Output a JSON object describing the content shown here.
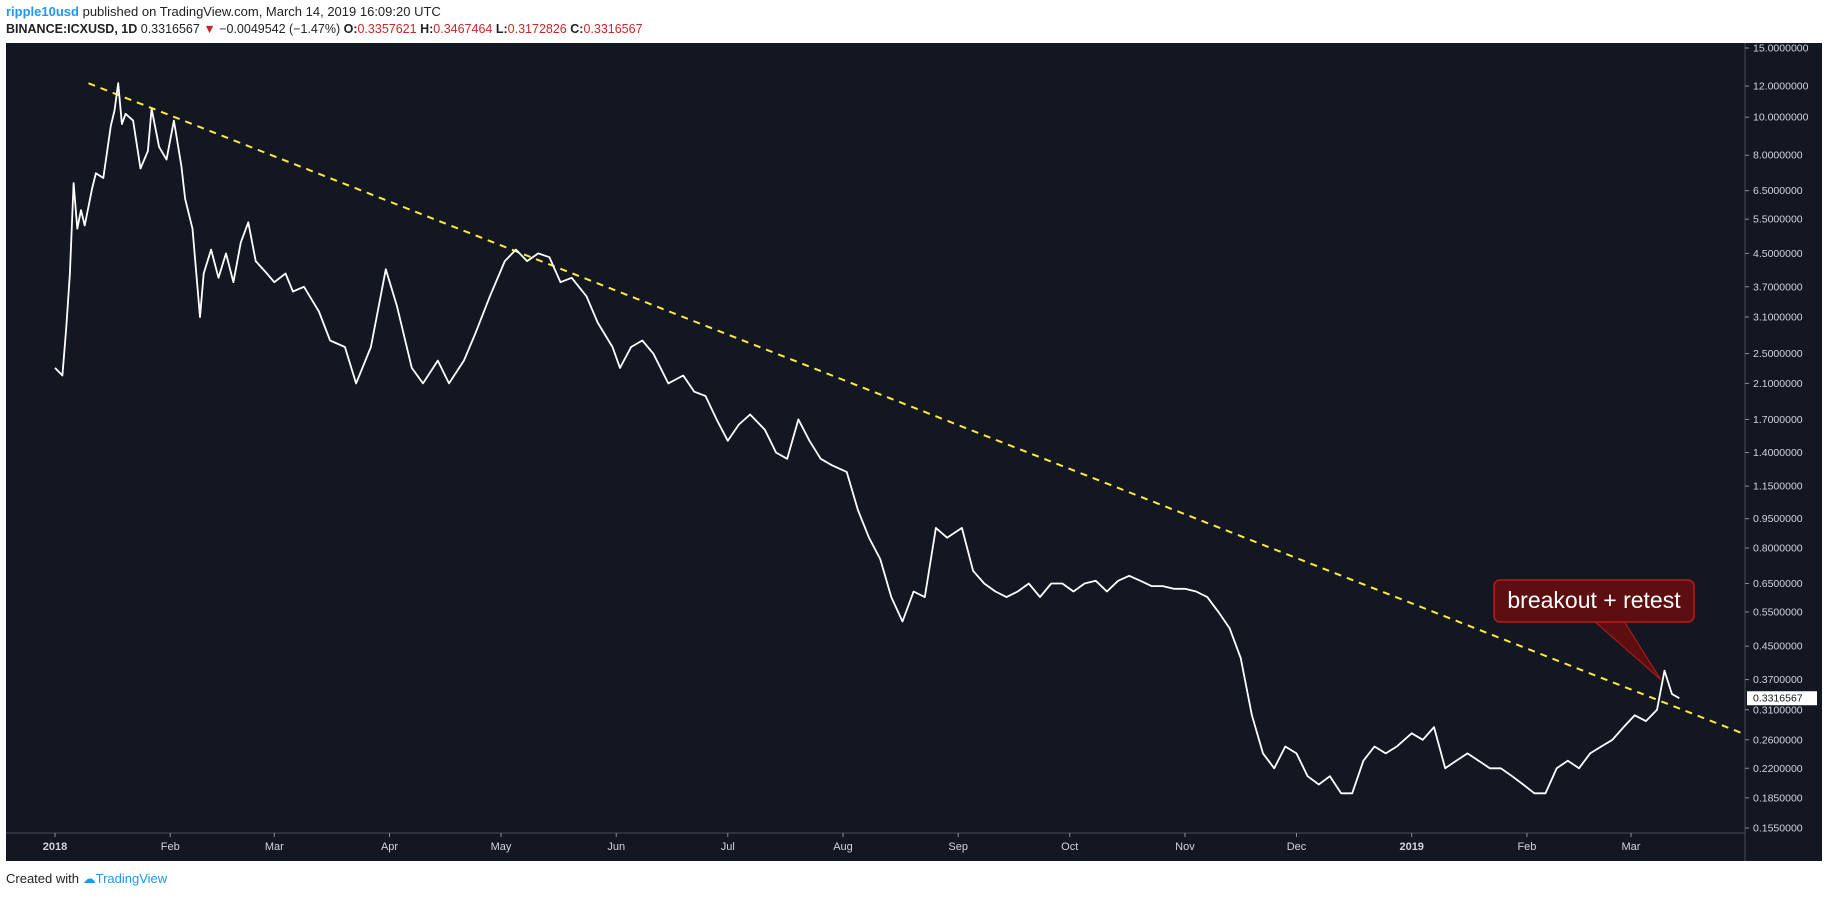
{
  "header": {
    "author": "ripple10usd",
    "published": "published on TradingView.com, March 14, 2019 16:09:20 UTC"
  },
  "symbol_line": {
    "symbol": "BINANCE:ICXUSD, 1D",
    "price": "0.3316567",
    "change_arrow": "▼",
    "change": "−0.0049542 (−1.47%)",
    "o_label": "O:",
    "o_value": "0.3357621",
    "h_label": "H:",
    "h_value": "0.3467464",
    "l_label": "L:",
    "l_value": "0.3172826",
    "c_label": "C:",
    "c_value": "0.3316567"
  },
  "footer": {
    "created_with": "Created with",
    "brand": "TradingView"
  },
  "colors": {
    "background": "#131722",
    "line": "#ffffff",
    "trendline": "#ffeb3b",
    "callout_fill": "#5d0f10",
    "callout_border": "#b71c1c",
    "down": "#c62828",
    "brand": "#2196f3"
  },
  "chart_data": {
    "type": "line",
    "scale": "log",
    "y_ticks": [
      "15.0000000",
      "12.0000000",
      "10.0000000",
      "8.0000000",
      "6.5000000",
      "5.5000000",
      "4.5000000",
      "3.7000000",
      "3.1000000",
      "2.5000000",
      "2.1000000",
      "1.7000000",
      "1.4000000",
      "1.1500000",
      "0.9500000",
      "0.8000000",
      "0.6500000",
      "0.5500000",
      "0.4500000",
      "0.3700000",
      "0.3100000",
      "0.2600000",
      "0.2200000",
      "0.1850000",
      "0.1550000"
    ],
    "x_ticks": [
      "2018",
      "Feb",
      "Mar",
      "Apr",
      "May",
      "Jun",
      "Jul",
      "Aug",
      "Sep",
      "Oct",
      "Nov",
      "Dec",
      "2019",
      "Feb",
      "Mar"
    ],
    "last_price_label": "0.3316567",
    "annotation": "breakout + retest",
    "trendline": {
      "from": {
        "x": "2018-01-10",
        "y": 12.2
      },
      "to": {
        "x": "2019-03-31",
        "y": 0.27
      }
    },
    "series": [
      {
        "points": [
          [
            "2018-01-01",
            2.3
          ],
          [
            "2018-01-03",
            2.2
          ],
          [
            "2018-01-04",
            2.9
          ],
          [
            "2018-01-05",
            4.0
          ],
          [
            "2018-01-06",
            6.8
          ],
          [
            "2018-01-07",
            5.2
          ],
          [
            "2018-01-08",
            5.8
          ],
          [
            "2018-01-09",
            5.3
          ],
          [
            "2018-01-11",
            6.6
          ],
          [
            "2018-01-12",
            7.2
          ],
          [
            "2018-01-14",
            7.0
          ],
          [
            "2018-01-16",
            9.5
          ],
          [
            "2018-01-17",
            10.4
          ],
          [
            "2018-01-18",
            12.2
          ],
          [
            "2018-01-19",
            9.6
          ],
          [
            "2018-01-20",
            10.2
          ],
          [
            "2018-01-22",
            9.8
          ],
          [
            "2018-01-24",
            7.4
          ],
          [
            "2018-01-26",
            8.2
          ],
          [
            "2018-01-27",
            10.5
          ],
          [
            "2018-01-29",
            8.4
          ],
          [
            "2018-01-31",
            7.8
          ],
          [
            "2018-02-02",
            9.8
          ],
          [
            "2018-02-04",
            7.5
          ],
          [
            "2018-02-05",
            6.2
          ],
          [
            "2018-02-07",
            5.2
          ],
          [
            "2018-02-09",
            3.1
          ],
          [
            "2018-02-10",
            4.0
          ],
          [
            "2018-02-12",
            4.6
          ],
          [
            "2018-02-14",
            3.9
          ],
          [
            "2018-02-16",
            4.5
          ],
          [
            "2018-02-18",
            3.8
          ],
          [
            "2018-02-20",
            4.8
          ],
          [
            "2018-02-22",
            5.4
          ],
          [
            "2018-02-24",
            4.3
          ],
          [
            "2018-02-27",
            4.0
          ],
          [
            "2018-03-01",
            3.8
          ],
          [
            "2018-03-04",
            4.0
          ],
          [
            "2018-03-06",
            3.6
          ],
          [
            "2018-03-09",
            3.7
          ],
          [
            "2018-03-13",
            3.2
          ],
          [
            "2018-03-16",
            2.7
          ],
          [
            "2018-03-20",
            2.6
          ],
          [
            "2018-03-23",
            2.1
          ],
          [
            "2018-03-27",
            2.6
          ],
          [
            "2018-03-31",
            4.1
          ],
          [
            "2018-04-03",
            3.3
          ],
          [
            "2018-04-07",
            2.3
          ],
          [
            "2018-04-10",
            2.1
          ],
          [
            "2018-04-14",
            2.4
          ],
          [
            "2018-04-17",
            2.1
          ],
          [
            "2018-04-21",
            2.4
          ],
          [
            "2018-04-24",
            2.8
          ],
          [
            "2018-04-28",
            3.5
          ],
          [
            "2018-05-02",
            4.3
          ],
          [
            "2018-05-05",
            4.6
          ],
          [
            "2018-05-08",
            4.3
          ],
          [
            "2018-05-11",
            4.5
          ],
          [
            "2018-05-14",
            4.4
          ],
          [
            "2018-05-17",
            3.8
          ],
          [
            "2018-05-20",
            3.9
          ],
          [
            "2018-05-24",
            3.5
          ],
          [
            "2018-05-27",
            3.0
          ],
          [
            "2018-05-31",
            2.6
          ],
          [
            "2018-06-02",
            2.3
          ],
          [
            "2018-06-05",
            2.6
          ],
          [
            "2018-06-08",
            2.7
          ],
          [
            "2018-06-11",
            2.5
          ],
          [
            "2018-06-15",
            2.1
          ],
          [
            "2018-06-19",
            2.2
          ],
          [
            "2018-06-22",
            2.0
          ],
          [
            "2018-06-25",
            1.95
          ],
          [
            "2018-06-28",
            1.7
          ],
          [
            "2018-07-01",
            1.5
          ],
          [
            "2018-07-04",
            1.65
          ],
          [
            "2018-07-07",
            1.75
          ],
          [
            "2018-07-11",
            1.6
          ],
          [
            "2018-07-14",
            1.4
          ],
          [
            "2018-07-17",
            1.35
          ],
          [
            "2018-07-20",
            1.7
          ],
          [
            "2018-07-23",
            1.5
          ],
          [
            "2018-07-26",
            1.35
          ],
          [
            "2018-07-29",
            1.3
          ],
          [
            "2018-08-02",
            1.25
          ],
          [
            "2018-08-05",
            1.0
          ],
          [
            "2018-08-08",
            0.85
          ],
          [
            "2018-08-11",
            0.75
          ],
          [
            "2018-08-14",
            0.6
          ],
          [
            "2018-08-17",
            0.52
          ],
          [
            "2018-08-20",
            0.62
          ],
          [
            "2018-08-23",
            0.6
          ],
          [
            "2018-08-26",
            0.9
          ],
          [
            "2018-08-29",
            0.85
          ],
          [
            "2018-09-02",
            0.9
          ],
          [
            "2018-09-05",
            0.7
          ],
          [
            "2018-09-08",
            0.65
          ],
          [
            "2018-09-11",
            0.62
          ],
          [
            "2018-09-14",
            0.6
          ],
          [
            "2018-09-17",
            0.62
          ],
          [
            "2018-09-20",
            0.65
          ],
          [
            "2018-09-23",
            0.6
          ],
          [
            "2018-09-26",
            0.65
          ],
          [
            "2018-09-29",
            0.65
          ],
          [
            "2018-10-02",
            0.62
          ],
          [
            "2018-10-05",
            0.65
          ],
          [
            "2018-10-08",
            0.66
          ],
          [
            "2018-10-11",
            0.62
          ],
          [
            "2018-10-14",
            0.66
          ],
          [
            "2018-10-17",
            0.68
          ],
          [
            "2018-10-20",
            0.66
          ],
          [
            "2018-10-23",
            0.64
          ],
          [
            "2018-10-26",
            0.64
          ],
          [
            "2018-10-29",
            0.63
          ],
          [
            "2018-11-01",
            0.63
          ],
          [
            "2018-11-04",
            0.62
          ],
          [
            "2018-11-07",
            0.6
          ],
          [
            "2018-11-10",
            0.55
          ],
          [
            "2018-11-13",
            0.5
          ],
          [
            "2018-11-16",
            0.42
          ],
          [
            "2018-11-19",
            0.3
          ],
          [
            "2018-11-22",
            0.24
          ],
          [
            "2018-11-25",
            0.22
          ],
          [
            "2018-11-28",
            0.25
          ],
          [
            "2018-12-01",
            0.24
          ],
          [
            "2018-12-04",
            0.21
          ],
          [
            "2018-12-07",
            0.2
          ],
          [
            "2018-12-10",
            0.21
          ],
          [
            "2018-12-13",
            0.19
          ],
          [
            "2018-12-16",
            0.19
          ],
          [
            "2018-12-19",
            0.23
          ],
          [
            "2018-12-22",
            0.25
          ],
          [
            "2018-12-25",
            0.24
          ],
          [
            "2018-12-28",
            0.25
          ],
          [
            "2019-01-01",
            0.27
          ],
          [
            "2019-01-04",
            0.26
          ],
          [
            "2019-01-07",
            0.28
          ],
          [
            "2019-01-10",
            0.22
          ],
          [
            "2019-01-13",
            0.23
          ],
          [
            "2019-01-16",
            0.24
          ],
          [
            "2019-01-19",
            0.23
          ],
          [
            "2019-01-22",
            0.22
          ],
          [
            "2019-01-25",
            0.22
          ],
          [
            "2019-01-28",
            0.21
          ],
          [
            "2019-01-31",
            0.2
          ],
          [
            "2019-02-03",
            0.19
          ],
          [
            "2019-02-06",
            0.19
          ],
          [
            "2019-02-09",
            0.22
          ],
          [
            "2019-02-12",
            0.23
          ],
          [
            "2019-02-15",
            0.22
          ],
          [
            "2019-02-18",
            0.24
          ],
          [
            "2019-02-21",
            0.25
          ],
          [
            "2019-02-24",
            0.26
          ],
          [
            "2019-02-27",
            0.28
          ],
          [
            "2019-03-02",
            0.3
          ],
          [
            "2019-03-05",
            0.29
          ],
          [
            "2019-03-08",
            0.31
          ],
          [
            "2019-03-10",
            0.39
          ],
          [
            "2019-03-12",
            0.34
          ],
          [
            "2019-03-14",
            0.3316567
          ]
        ]
      }
    ]
  }
}
